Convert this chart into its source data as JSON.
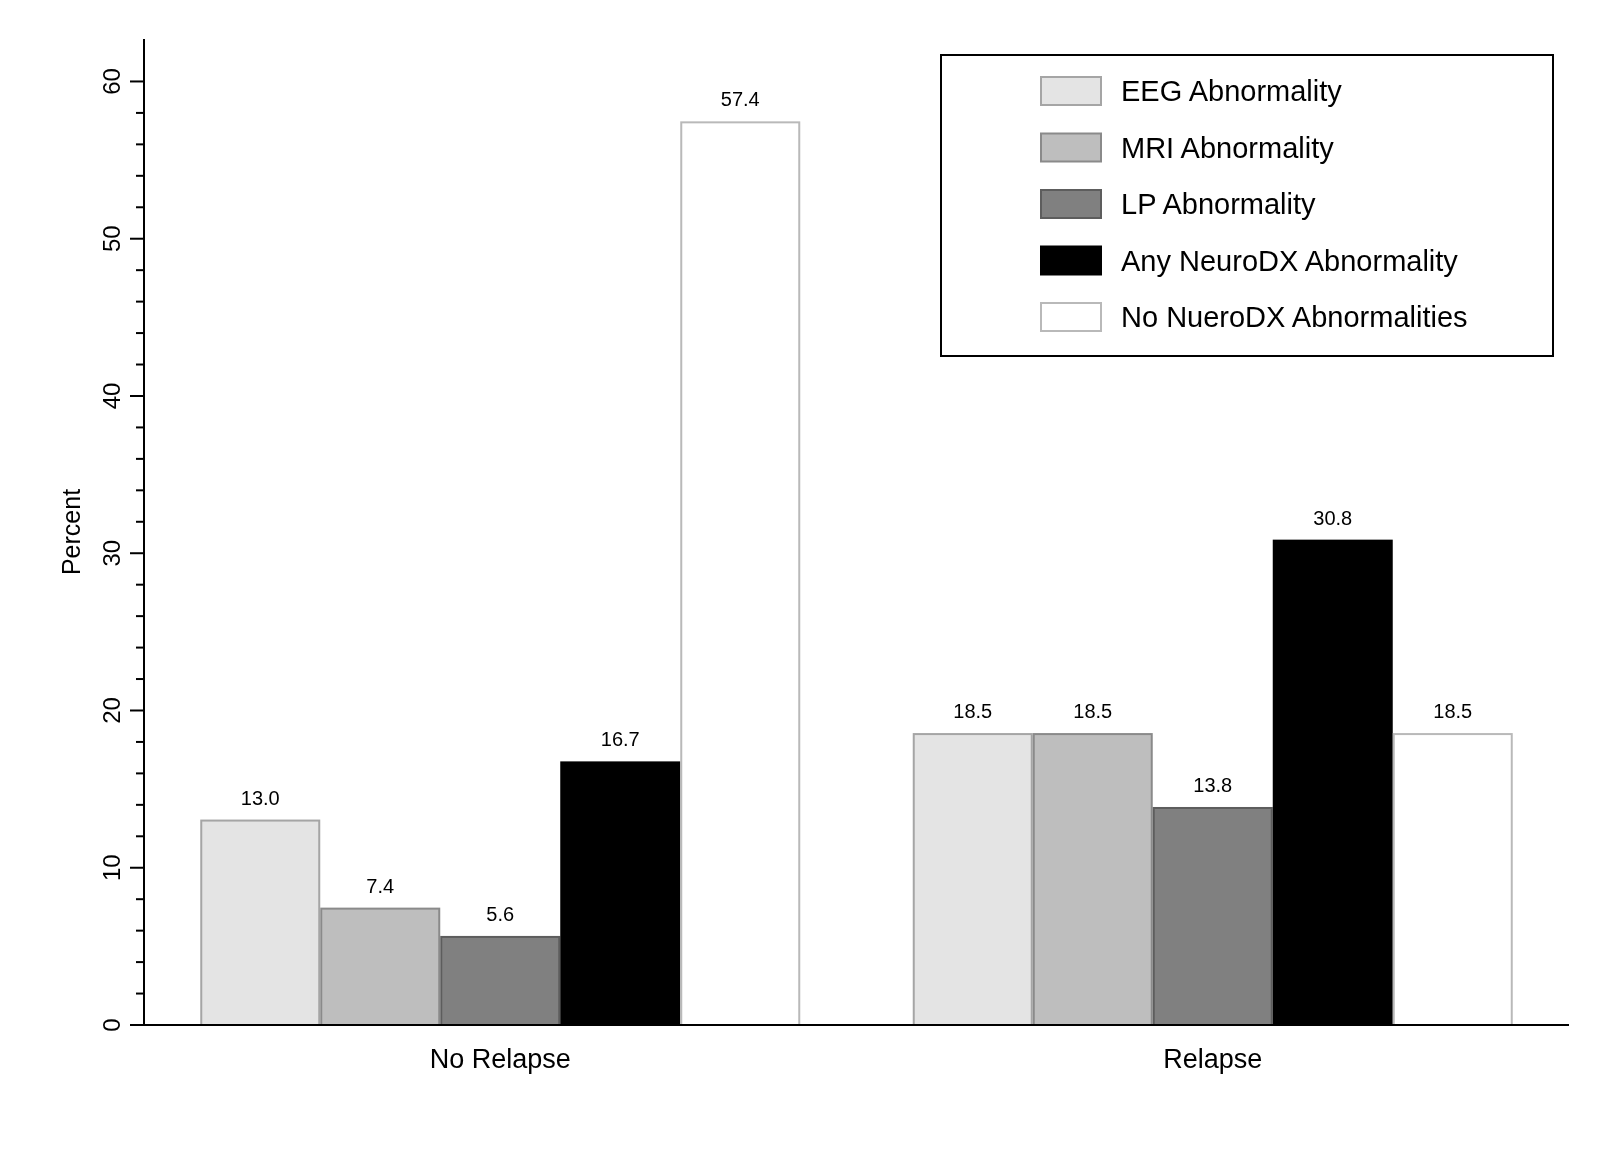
{
  "chart_data": {
    "type": "bar",
    "ylabel": "Percent",
    "categories": [
      "No Relapse",
      "Relapse"
    ],
    "series": [
      {
        "name": "EEG Abnormality",
        "color": "#e4e4e4",
        "values": [
          13.0,
          18.5
        ]
      },
      {
        "name": "MRI Abnormality",
        "color": "#bebebe",
        "values": [
          7.4,
          18.5
        ]
      },
      {
        "name": "LP Abnormality",
        "color": "#808080",
        "values": [
          5.6,
          13.8
        ]
      },
      {
        "name": "Any NeuroDX Abnormality",
        "color": "#000000",
        "values": [
          16.7,
          30.8
        ]
      },
      {
        "name": "No NueroDX Abnormalities",
        "color": "#ffffff",
        "values": [
          57.4,
          18.5
        ]
      }
    ],
    "value_labels": [
      [
        "13.0",
        "18.5"
      ],
      [
        "7.4",
        "18.5"
      ],
      [
        "5.6",
        "13.8"
      ],
      [
        "16.7",
        "30.8"
      ],
      [
        "57.4",
        "18.5"
      ]
    ],
    "ylim": [
      0,
      62.7
    ],
    "yticks": [
      0,
      {
        "value": 2,
        "label": null
      },
      {
        "value": 4,
        "label": null
      },
      {
        "value": 6,
        "label": null
      },
      {
        "value": 8,
        "label": null
      },
      10,
      {
        "value": 12,
        "label": null
      },
      {
        "value": 14,
        "label": null
      },
      {
        "value": 16,
        "label": null
      },
      {
        "value": 18,
        "label": null
      },
      20,
      {
        "value": 22,
        "label": null
      },
      {
        "value": 24,
        "label": null
      },
      {
        "value": 26,
        "label": null
      },
      {
        "value": 28,
        "label": null
      },
      30,
      {
        "value": 32,
        "label": null
      },
      {
        "value": 34,
        "label": null
      },
      {
        "value": 36,
        "label": null
      },
      {
        "value": 38,
        "label": null
      },
      40,
      {
        "value": 42,
        "label": null
      },
      {
        "value": 44,
        "label": null
      },
      {
        "value": 46,
        "label": null
      },
      {
        "value": 48,
        "label": null
      },
      50,
      {
        "value": 52,
        "label": null
      },
      {
        "value": 54,
        "label": null
      },
      {
        "value": 56,
        "label": null
      },
      {
        "value": 58,
        "label": null
      },
      60
    ],
    "grid": false,
    "legend": "top right"
  }
}
